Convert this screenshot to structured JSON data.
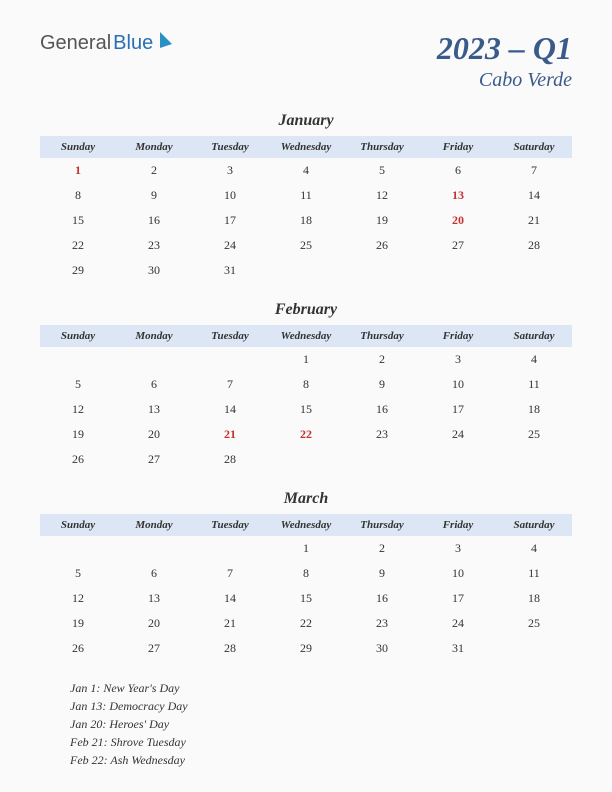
{
  "logo": {
    "part1": "General",
    "part2": "Blue"
  },
  "title": {
    "main": "2023 – Q1",
    "sub": "Cabo Verde"
  },
  "dayHeaders": [
    "Sunday",
    "Monday",
    "Tuesday",
    "Wednesday",
    "Thursday",
    "Friday",
    "Saturday"
  ],
  "header_bg": "#dce6f4",
  "title_color": "#3a5a8a",
  "holiday_color": "#c43030",
  "months": [
    {
      "name": "January",
      "weeks": [
        [
          {
            "d": "1",
            "h": true
          },
          {
            "d": "2"
          },
          {
            "d": "3"
          },
          {
            "d": "4"
          },
          {
            "d": "5"
          },
          {
            "d": "6"
          },
          {
            "d": "7"
          }
        ],
        [
          {
            "d": "8"
          },
          {
            "d": "9"
          },
          {
            "d": "10"
          },
          {
            "d": "11"
          },
          {
            "d": "12"
          },
          {
            "d": "13",
            "h": true
          },
          {
            "d": "14"
          }
        ],
        [
          {
            "d": "15"
          },
          {
            "d": "16"
          },
          {
            "d": "17"
          },
          {
            "d": "18"
          },
          {
            "d": "19"
          },
          {
            "d": "20",
            "h": true
          },
          {
            "d": "21"
          }
        ],
        [
          {
            "d": "22"
          },
          {
            "d": "23"
          },
          {
            "d": "24"
          },
          {
            "d": "25"
          },
          {
            "d": "26"
          },
          {
            "d": "27"
          },
          {
            "d": "28"
          }
        ],
        [
          {
            "d": "29"
          },
          {
            "d": "30"
          },
          {
            "d": "31"
          },
          {
            "d": ""
          },
          {
            "d": ""
          },
          {
            "d": ""
          },
          {
            "d": ""
          }
        ]
      ]
    },
    {
      "name": "February",
      "weeks": [
        [
          {
            "d": ""
          },
          {
            "d": ""
          },
          {
            "d": ""
          },
          {
            "d": "1"
          },
          {
            "d": "2"
          },
          {
            "d": "3"
          },
          {
            "d": "4"
          }
        ],
        [
          {
            "d": "5"
          },
          {
            "d": "6"
          },
          {
            "d": "7"
          },
          {
            "d": "8"
          },
          {
            "d": "9"
          },
          {
            "d": "10"
          },
          {
            "d": "11"
          }
        ],
        [
          {
            "d": "12"
          },
          {
            "d": "13"
          },
          {
            "d": "14"
          },
          {
            "d": "15"
          },
          {
            "d": "16"
          },
          {
            "d": "17"
          },
          {
            "d": "18"
          }
        ],
        [
          {
            "d": "19"
          },
          {
            "d": "20"
          },
          {
            "d": "21",
            "h": true
          },
          {
            "d": "22",
            "h": true
          },
          {
            "d": "23"
          },
          {
            "d": "24"
          },
          {
            "d": "25"
          }
        ],
        [
          {
            "d": "26"
          },
          {
            "d": "27"
          },
          {
            "d": "28"
          },
          {
            "d": ""
          },
          {
            "d": ""
          },
          {
            "d": ""
          },
          {
            "d": ""
          }
        ]
      ]
    },
    {
      "name": "March",
      "weeks": [
        [
          {
            "d": ""
          },
          {
            "d": ""
          },
          {
            "d": ""
          },
          {
            "d": "1"
          },
          {
            "d": "2"
          },
          {
            "d": "3"
          },
          {
            "d": "4"
          }
        ],
        [
          {
            "d": "5"
          },
          {
            "d": "6"
          },
          {
            "d": "7"
          },
          {
            "d": "8"
          },
          {
            "d": "9"
          },
          {
            "d": "10"
          },
          {
            "d": "11"
          }
        ],
        [
          {
            "d": "12"
          },
          {
            "d": "13"
          },
          {
            "d": "14"
          },
          {
            "d": "15"
          },
          {
            "d": "16"
          },
          {
            "d": "17"
          },
          {
            "d": "18"
          }
        ],
        [
          {
            "d": "19"
          },
          {
            "d": "20"
          },
          {
            "d": "21"
          },
          {
            "d": "22"
          },
          {
            "d": "23"
          },
          {
            "d": "24"
          },
          {
            "d": "25"
          }
        ],
        [
          {
            "d": "26"
          },
          {
            "d": "27"
          },
          {
            "d": "28"
          },
          {
            "d": "29"
          },
          {
            "d": "30"
          },
          {
            "d": "31"
          },
          {
            "d": ""
          }
        ]
      ]
    }
  ],
  "holidays": [
    "Jan 1: New Year's Day",
    "Jan 13: Democracy Day",
    "Jan 20: Heroes' Day",
    "Feb 21: Shrove Tuesday",
    "Feb 22: Ash Wednesday"
  ]
}
